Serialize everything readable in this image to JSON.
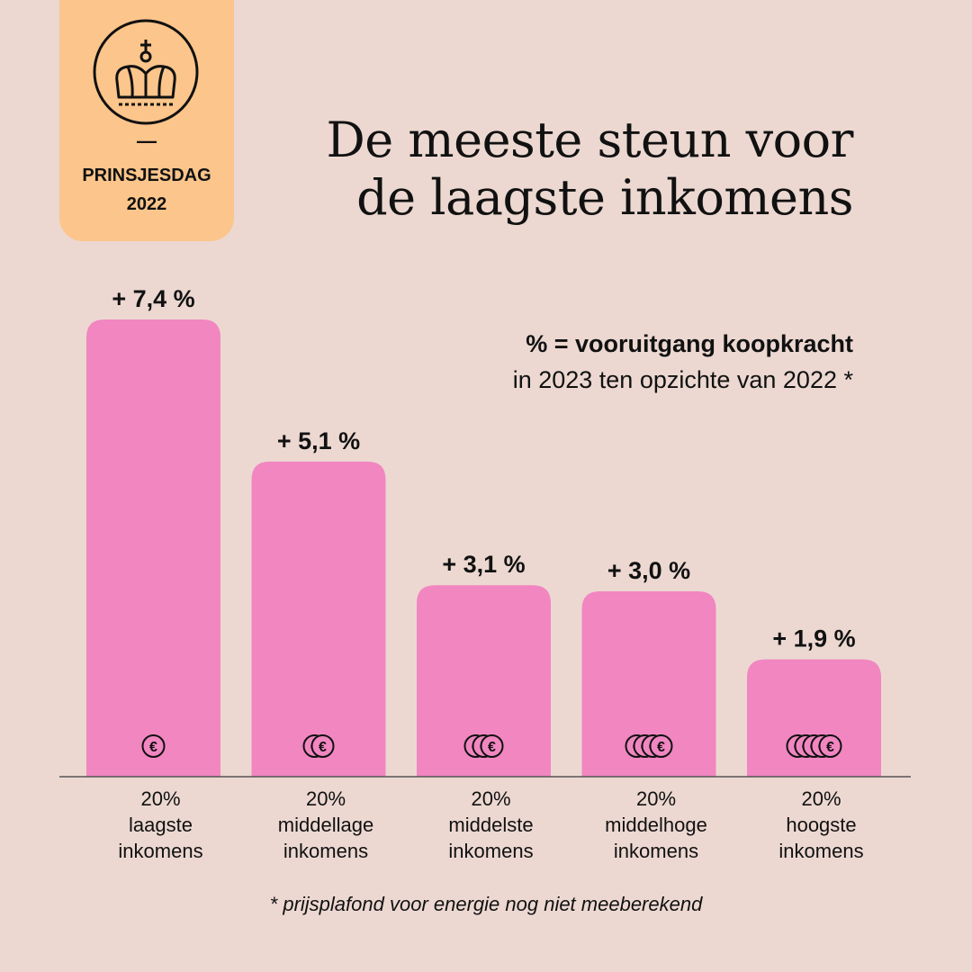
{
  "badge": {
    "dash": "—",
    "line1": "PRINSJESDAG",
    "line2": "2022",
    "icon": "crown-icon"
  },
  "title": {
    "line1": "De meeste steun voor",
    "line2": "de laagste inkomens"
  },
  "subtitle": {
    "line1": "% = vooruitgang koopkracht",
    "line2": "in 2023 ten opzichte van 2022 *"
  },
  "footnote": "* prijsplafond voor energie nog niet meeberekend",
  "colors": {
    "background": "#ecd8d1",
    "badge": "#fcc58b",
    "bar": "#f186c1",
    "text": "#111111"
  },
  "chart_data": {
    "type": "bar",
    "title": "De meeste steun voor de laagste inkomens",
    "ylabel": "",
    "xlabel": "",
    "ylim": [
      0,
      7.4
    ],
    "grid": false,
    "categories": [
      [
        "20%",
        "laagste",
        "inkomens"
      ],
      [
        "20%",
        "middellage",
        "inkomens"
      ],
      [
        "20%",
        "middelste",
        "inkomens"
      ],
      [
        "20%",
        "middelhoge",
        "inkomens"
      ],
      [
        "20%",
        "hoogste",
        "inkomens"
      ]
    ],
    "values": [
      7.4,
      5.1,
      3.1,
      3.0,
      1.9
    ],
    "value_labels": [
      "+ 7,4 %",
      "+ 5,1 %",
      "+ 3,1 %",
      "+ 3,0 %",
      "+ 1,9 %"
    ],
    "coin_counts": [
      1,
      2,
      3,
      4,
      5
    ],
    "coin_icon": "euro-coin-icon"
  }
}
